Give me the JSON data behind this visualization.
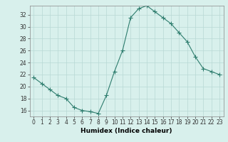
{
  "x": [
    0,
    1,
    2,
    3,
    4,
    5,
    6,
    7,
    8,
    9,
    10,
    11,
    12,
    13,
    14,
    15,
    16,
    17,
    18,
    19,
    20,
    21,
    22,
    23
  ],
  "y": [
    21.5,
    20.5,
    19.5,
    18.5,
    18.0,
    16.5,
    16.0,
    15.8,
    15.5,
    18.5,
    22.5,
    26.0,
    31.5,
    33.0,
    33.5,
    32.5,
    31.5,
    30.5,
    29.0,
    27.5,
    25.0,
    23.0,
    22.5,
    22.0
  ],
  "line_color": "#2e7d6e",
  "marker": "+",
  "marker_size": 4,
  "background_color": "#d8f0ec",
  "grid_color": "#b8d8d4",
  "xlabel": "Humidex (Indice chaleur)",
  "xlim": [
    -0.5,
    23.5
  ],
  "ylim": [
    15.0,
    33.5
  ],
  "yticks": [
    16,
    18,
    20,
    22,
    24,
    26,
    28,
    30,
    32
  ],
  "xticks": [
    0,
    1,
    2,
    3,
    4,
    5,
    6,
    7,
    8,
    9,
    10,
    11,
    12,
    13,
    14,
    15,
    16,
    17,
    18,
    19,
    20,
    21,
    22,
    23
  ],
  "tick_label_fontsize": 5.5,
  "xlabel_fontsize": 6.5,
  "linewidth": 0.8,
  "markeredgewidth": 0.8
}
